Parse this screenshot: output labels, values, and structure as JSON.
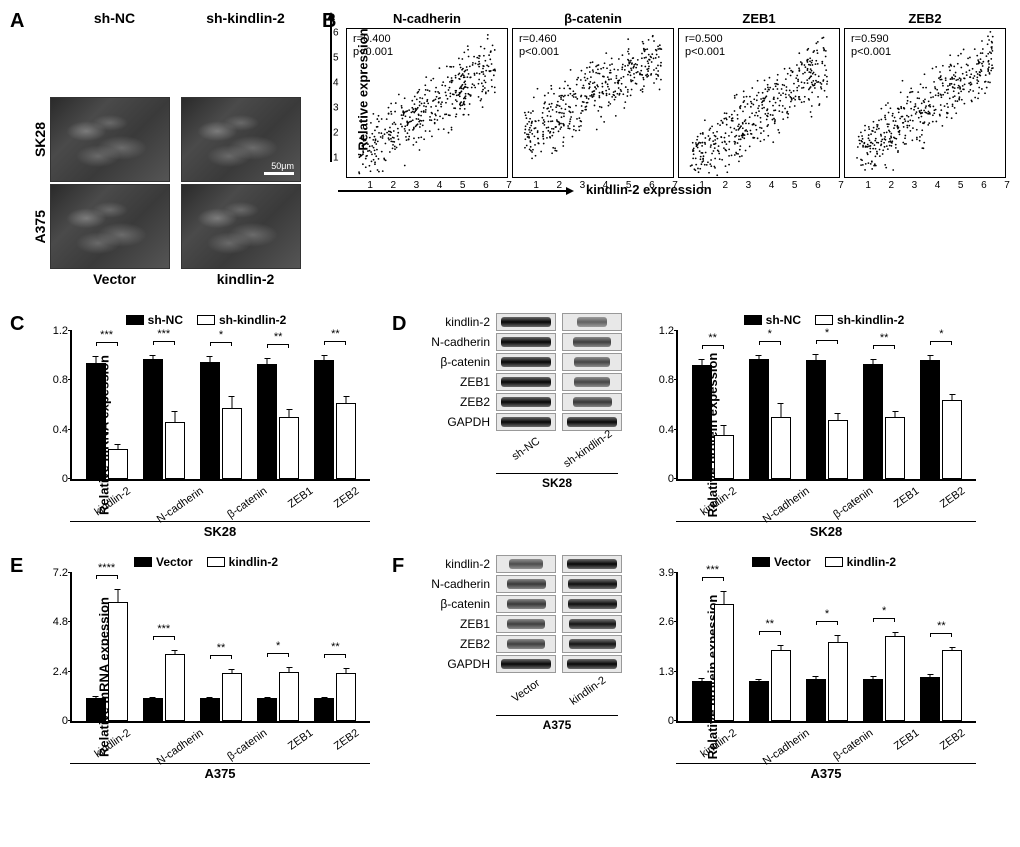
{
  "panelA": {
    "label": "A",
    "rows": [
      "SK28",
      "A375"
    ],
    "top_cols": [
      "sh-NC",
      "sh-kindlin-2"
    ],
    "bottom_cols": [
      "Vector",
      "kindlin-2"
    ],
    "scale_bar": "50μm"
  },
  "panelB": {
    "label": "B",
    "y_axis_label": "Relative expression",
    "x_axis_label": "kindlin-2 expression",
    "plots": [
      {
        "title": "N-cadherin",
        "r": "r=0.400",
        "p": "p<0.001",
        "xmax": 7,
        "ymax": 6,
        "slope": 0.6,
        "intercept": 0.6
      },
      {
        "title": "β-catenin",
        "r": "r=0.460",
        "p": "p<0.001",
        "xmax": 7,
        "ymax": 10,
        "slope": 0.9,
        "intercept": 2.5
      },
      {
        "title": "ZEB1",
        "r": "r=0.500",
        "p": "p<0.001",
        "xmax": 7,
        "ymax": 6,
        "slope": 0.65,
        "intercept": 0.3
      },
      {
        "title": "ZEB2",
        "r": "r=0.590",
        "p": "p<0.001",
        "xmax": 7,
        "ymax": 8,
        "slope": 0.85,
        "intercept": 0.8
      }
    ],
    "xticks": [
      1,
      2,
      3,
      4,
      5,
      6,
      7
    ]
  },
  "panelC": {
    "label": "C",
    "legend": [
      "sh-NC",
      "sh-kindlin-2"
    ],
    "ylabel": "Relative mRNA expession",
    "ymax": 1.2,
    "ytick_step": 0.4,
    "genes": [
      "kindlin-2",
      "N-cadherin",
      "β-catenin",
      "ZEB1",
      "ZEB2"
    ],
    "black": [
      0.93,
      0.96,
      0.94,
      0.92,
      0.95
    ],
    "white": [
      0.24,
      0.46,
      0.57,
      0.5,
      0.61
    ],
    "black_err": [
      0.06,
      0.04,
      0.05,
      0.06,
      0.05
    ],
    "white_err": [
      0.05,
      0.09,
      0.1,
      0.07,
      0.06
    ],
    "sig": [
      "***",
      "***",
      "*",
      "**",
      "**"
    ],
    "cell": "SK28",
    "colors": {
      "black": "#000000",
      "white": "#ffffff"
    }
  },
  "panelD": {
    "label": "D",
    "blot": {
      "proteins": [
        "kindlin-2",
        "N-cadherin",
        "β-catenin",
        "ZEB1",
        "ZEB2",
        "GAPDH"
      ],
      "lanes": [
        "sh-NC",
        "sh-kindlin-2"
      ],
      "intensities": [
        [
          0.95,
          0.3
        ],
        [
          0.95,
          0.55
        ],
        [
          0.95,
          0.5
        ],
        [
          0.95,
          0.5
        ],
        [
          0.95,
          0.6
        ],
        [
          0.95,
          0.95
        ]
      ],
      "cell": "SK28"
    },
    "bars": {
      "legend": [
        "sh-NC",
        "sh-kindlin-2"
      ],
      "ylabel": "Relative protein expession",
      "ymax": 1.2,
      "ytick_step": 0.4,
      "genes": [
        "kindlin-2",
        "N-cadherin",
        "β-catenin",
        "ZEB1",
        "ZEB2"
      ],
      "black": [
        0.91,
        0.96,
        0.95,
        0.92,
        0.95
      ],
      "white": [
        0.35,
        0.5,
        0.47,
        0.5,
        0.63
      ],
      "black_err": [
        0.06,
        0.04,
        0.06,
        0.05,
        0.05
      ],
      "white_err": [
        0.09,
        0.12,
        0.07,
        0.05,
        0.06
      ],
      "sig": [
        "**",
        "*",
        "*",
        "**",
        "*"
      ],
      "cell": "SK28"
    }
  },
  "panelE": {
    "label": "E",
    "legend": [
      "Vector",
      "kindlin-2"
    ],
    "ylabel": "Relative mRNA expession",
    "ymax": 7.2,
    "ytick_step": 2.4,
    "genes": [
      "kindlin-2",
      "N-cadherin",
      "β-catenin",
      "ZEB1",
      "ZEB2"
    ],
    "black": [
      1.1,
      1.1,
      1.1,
      1.1,
      1.1
    ],
    "white": [
      5.7,
      3.2,
      2.3,
      2.35,
      2.3
    ],
    "black_err": [
      0.15,
      0.1,
      0.1,
      0.1,
      0.1
    ],
    "white_err": [
      0.7,
      0.25,
      0.25,
      0.3,
      0.3
    ],
    "sig": [
      "****",
      "***",
      "**",
      "*",
      "**"
    ],
    "cell": "A375"
  },
  "panelF": {
    "label": "F",
    "blot": {
      "proteins": [
        "kindlin-2",
        "N-cadherin",
        "β-catenin",
        "ZEB1",
        "ZEB2",
        "GAPDH"
      ],
      "lanes": [
        "Vector",
        "kindlin-2"
      ],
      "intensities": [
        [
          0.45,
          0.95
        ],
        [
          0.6,
          0.9
        ],
        [
          0.6,
          0.9
        ],
        [
          0.55,
          0.85
        ],
        [
          0.55,
          0.85
        ],
        [
          0.95,
          0.95
        ]
      ],
      "cell": "A375"
    },
    "bars": {
      "legend": [
        "Vector",
        "kindlin-2"
      ],
      "ylabel": "Relative protein expession",
      "ymax": 3.9,
      "ytick_step": 1.3,
      "genes": [
        "kindlin-2",
        "N-cadherin",
        "β-catenin",
        "ZEB1",
        "ZEB2"
      ],
      "black": [
        1.05,
        1.05,
        1.1,
        1.1,
        1.15
      ],
      "white": [
        3.05,
        1.85,
        2.05,
        2.2,
        1.85
      ],
      "black_err": [
        0.1,
        0.08,
        0.1,
        0.1,
        0.1
      ],
      "white_err": [
        0.35,
        0.15,
        0.2,
        0.15,
        0.1
      ],
      "sig": [
        "***",
        "**",
        "*",
        "*",
        "**"
      ],
      "cell": "A375"
    }
  }
}
